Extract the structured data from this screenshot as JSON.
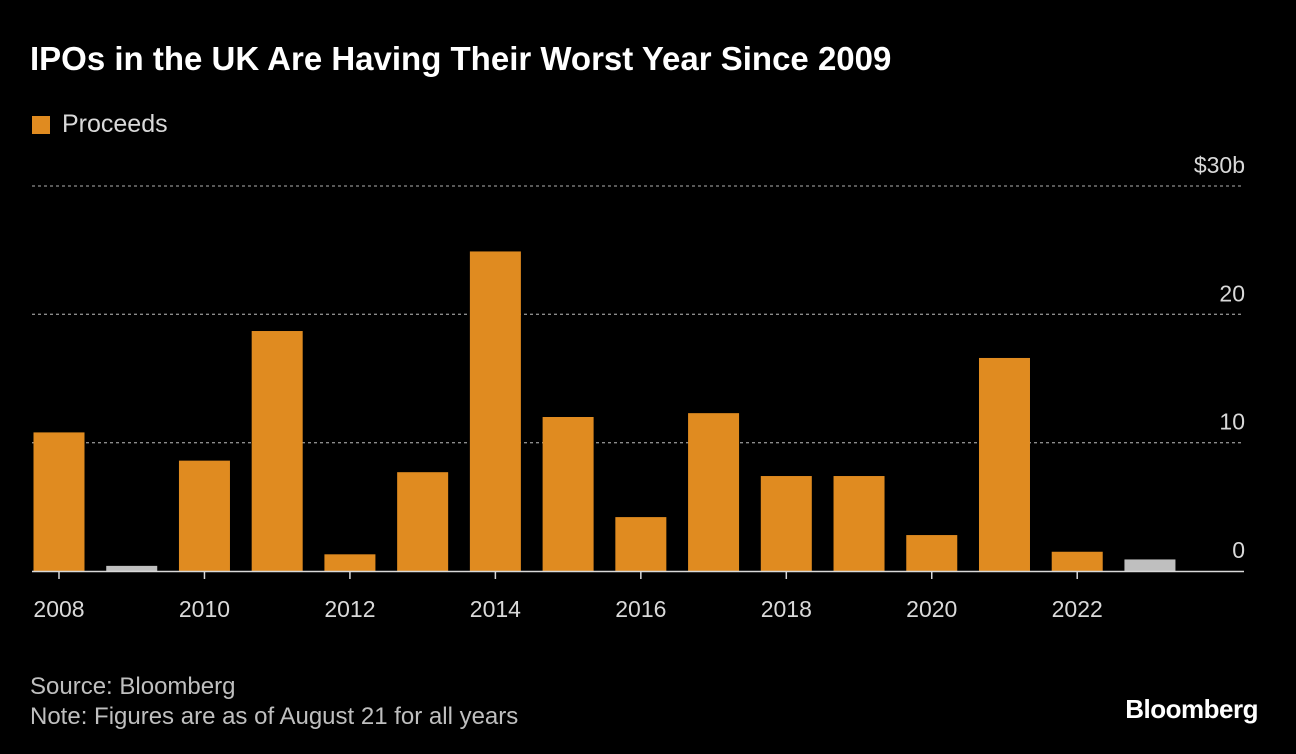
{
  "header": {
    "title": "IPOs in the UK Are Having Their Worst Year Since 2009"
  },
  "legend": {
    "label": "Proceeds"
  },
  "footer": {
    "source": "Source: Bloomberg",
    "note": "Note: Figures are as of August 21 for all years",
    "brand": "Bloomberg"
  },
  "colors": {
    "background": "#000000",
    "bar": "#e08b20",
    "bar_highlight": "#bfbfbf",
    "grid": "#8c8c8c",
    "axis": "#d9d9d9"
  },
  "chart_data": {
    "type": "bar",
    "title": "IPOs in the UK Are Having Their Worst Year Since 2009",
    "xlabel": "",
    "ylabel": "",
    "categories": [
      "2008",
      "2009",
      "2010",
      "2011",
      "2012",
      "2013",
      "2014",
      "2015",
      "2016",
      "2017",
      "2018",
      "2019",
      "2020",
      "2021",
      "2022",
      "2023"
    ],
    "series": [
      {
        "name": "Proceeds",
        "values": [
          10.8,
          0.4,
          8.6,
          18.7,
          1.3,
          7.7,
          24.9,
          12.0,
          4.2,
          12.3,
          7.4,
          7.4,
          2.8,
          16.6,
          1.5,
          0.9
        ]
      }
    ],
    "highlight_categories": [
      "2009",
      "2023"
    ],
    "ylim": [
      0,
      30
    ],
    "yticks": [
      0,
      10,
      20,
      30
    ],
    "ytick_labels": [
      "0",
      "10",
      "20",
      "$30b"
    ],
    "xtick_labels": [
      "2008",
      "2010",
      "2012",
      "2014",
      "2016",
      "2018",
      "2020",
      "2022"
    ],
    "grid": true,
    "legend_position": "top-left"
  }
}
